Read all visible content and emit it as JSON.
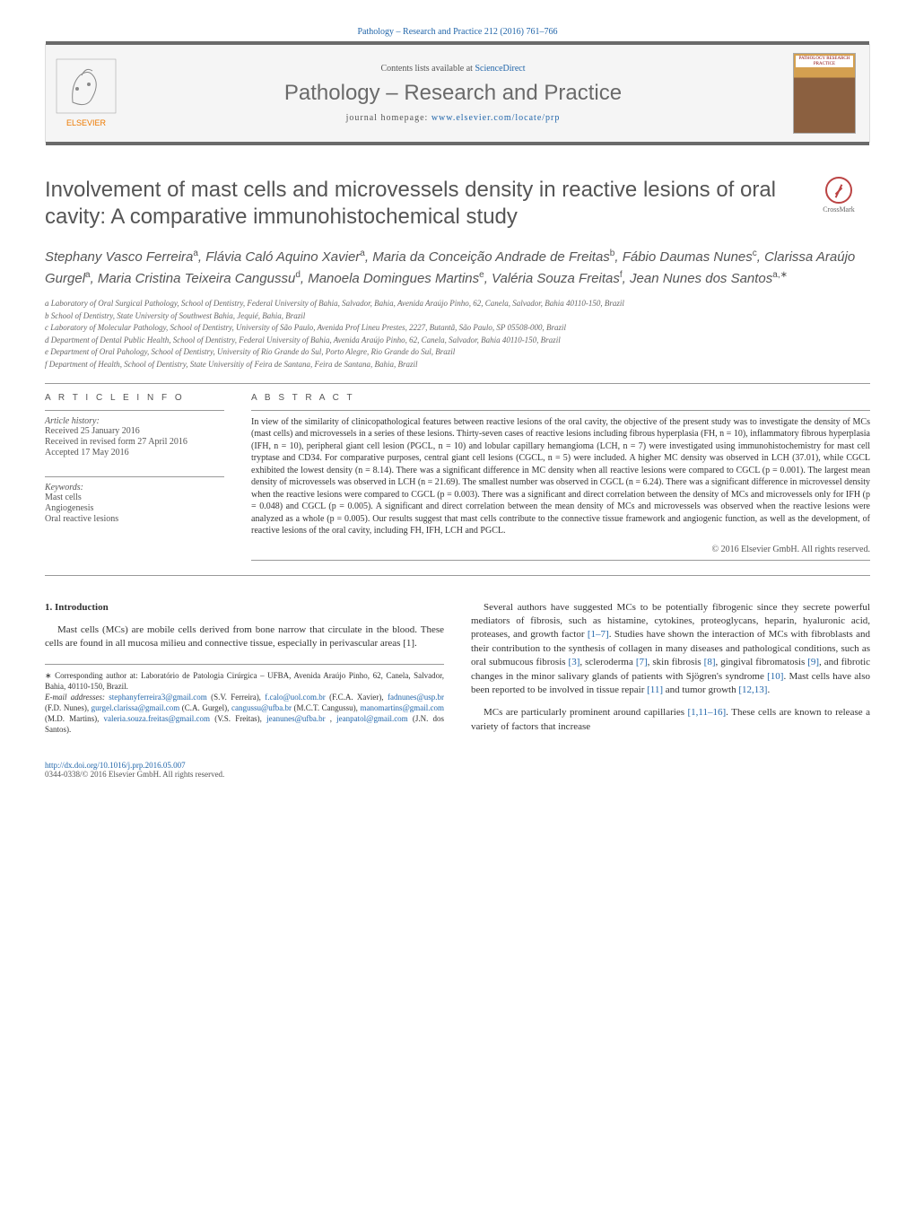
{
  "meta": {
    "citation_line": "Pathology – Research and Practice 212 (2016) 761–766",
    "contents_prefix": "Contents lists available at ",
    "contents_link": "ScienceDirect",
    "journal_name": "Pathology – Research and Practice",
    "homepage_prefix": "journal homepage: ",
    "homepage_link": "www.elsevier.com/locate/prp",
    "cover_label": "PATHOLOGY RESEARCH PRACTICE",
    "crossmark": "CrossMark"
  },
  "title": "Involvement of mast cells and microvessels density in reactive lesions of oral cavity: A comparative immunohistochemical study",
  "authors_html": "Stephany Vasco Ferreira<sup>a</sup>, Flávia Caló Aquino Xavier<sup>a</sup>, Maria da Conceição Andrade de Freitas<sup>b</sup>, Fábio Daumas Nunes<sup>c</sup>, Clarissa Araújo Gurgel<sup>a</sup>, Maria Cristina Teixeira Cangussu<sup>d</sup>, Manoela Domingues Martins<sup>e</sup>, Valéria Souza Freitas<sup>f</sup>, Jean Nunes dos Santos<sup>a,∗</sup>",
  "affiliations": [
    "a Laboratory of Oral Surgical Pathology, School of Dentistry, Federal University of Bahia, Salvador, Bahia, Avenida Araújo Pinho, 62, Canela, Salvador, Bahia 40110-150, Brazil",
    "b School of Dentistry, State University of Southwest Bahia, Jequié, Bahia, Brazil",
    "c Laboratory of Molecular Pathology, School of Dentistry, University of São Paulo, Avenida Prof Lineu Prestes, 2227, Butantã, São Paulo, SP 05508-000, Brazil",
    "d Department of Dental Public Health, School of Dentistry, Federal University of Bahia, Avenida Araújo Pinho, 62, Canela, Salvador, Bahia 40110-150, Brazil",
    "e Department of Oral Pahology, School of Dentistry, University of Rio Grande do Sul, Porto Alegre, Rio Grande do Sul, Brazil",
    "f Department of Health, School of Dentistry, State Universitiy of Feira de Santana, Feira de Santana, Bahia, Brazil"
  ],
  "info": {
    "heading": "a r t i c l e   i n f o",
    "history_label": "Article history:",
    "history": [
      "Received 25 January 2016",
      "Received in revised form 27 April 2016",
      "Accepted 17 May 2016"
    ],
    "keywords_label": "Keywords:",
    "keywords": [
      "Mast cells",
      "Angiogenesis",
      "Oral reactive lesions"
    ]
  },
  "abstract": {
    "heading": "a b s t r a c t",
    "text": "In view of the similarity of clinicopathological features between reactive lesions of the oral cavity, the objective of the present study was to investigate the density of MCs (mast cells) and microvessels in a series of these lesions. Thirty-seven cases of reactive lesions including fibrous hyperplasia (FH, n = 10), inflammatory fibrous hyperplasia (IFH, n = 10), peripheral giant cell lesion (PGCL, n = 10) and lobular capillary hemangioma (LCH, n = 7) were investigated using immunohistochemistry for mast cell tryptase and CD34. For comparative purposes, central giant cell lesions (CGCL, n = 5) were included. A higher MC density was observed in LCH (37.01), while CGCL exhibited the lowest density (n = 8.14). There was a significant difference in MC density when all reactive lesions were compared to CGCL (p = 0.001). The largest mean density of microvessels was observed in LCH (n = 21.69). The smallest number was observed in CGCL (n = 6.24). There was a significant difference in microvessel density when the reactive lesions were compared to CGCL (p = 0.003). There was a significant and direct correlation between the density of MCs and microvessels only for IFH (p = 0.048) and CGCL (p = 0.005). A significant and direct correlation between the mean density of MCs and microvessels was observed when the reactive lesions were analyzed as a whole (p = 0.005). Our results suggest that mast cells contribute to the connective tissue framework and angiogenic function, as well as the development, of reactive lesions of the oral cavity, including FH, IFH, LCH and PGCL.",
    "copyright": "© 2016 Elsevier GmbH. All rights reserved."
  },
  "body": {
    "heading": "1.  Introduction",
    "col1": {
      "p1": "Mast cells (MCs) are mobile cells derived from bone narrow that circulate in the blood. These cells are found in all mucosa milieu and connective tissue, especially in perivascular areas [1].",
      "fn_corr_label": "∗ Corresponding author at: ",
      "fn_corr_text": "Laboratório de Patologia Cirúrgica – UFBA, Avenida Araújo Pinho, 62, Canela, Salvador, Bahia, 40110-150, Brazil.",
      "fn_email_label": "E-mail addresses: ",
      "emails": [
        {
          "addr": "stephanyferreira3@gmail.com",
          "who": "(S.V. Ferreira)"
        },
        {
          "addr": "f.calo@uol.com.br",
          "who": "(F.C.A. Xavier)"
        },
        {
          "addr": "fadnunes@usp.br",
          "who": "(F.D. Nunes)"
        },
        {
          "addr": "gurgel.clarissa@gmail.com",
          "who": "(C.A. Gurgel)"
        },
        {
          "addr": "cangussu@ufba.br",
          "who": "(M.C.T. Cangussu)"
        },
        {
          "addr": "manomartins@gmail.com",
          "who": "(M.D. Martins)"
        },
        {
          "addr": "valeria.souza.freitas@gmail.com",
          "who": "(V.S. Freitas)"
        },
        {
          "addr": "jeanunes@ufba.br",
          "who": ""
        },
        {
          "addr": "jeanpatol@gmail.com",
          "who": "(J.N. dos Santos)."
        }
      ]
    },
    "col2": {
      "p1_a": "Several authors have suggested MCs to be potentially fibrogenic since they secrete powerful mediators of fibrosis, such as histamine, cytokines, proteoglycans, heparin, hyaluronic acid, proteases, and growth factor ",
      "p1_link1": "[1–7]",
      "p1_b": ". Studies have shown the interaction of MCs with fibroblasts and their contribution to the synthesis of collagen in many diseases and pathological conditions, such as oral submucous fibrosis ",
      "p1_link2": "[3]",
      "p1_c": ", scleroderma ",
      "p1_link3": "[7]",
      "p1_d": ", skin fibrosis ",
      "p1_link4": "[8]",
      "p1_e": ", gingival fibromatosis ",
      "p1_link5": "[9]",
      "p1_f": ", and fibrotic changes in the minor salivary glands of patients with Sjögren's syndrome ",
      "p1_link6": "[10]",
      "p1_g": ". Mast cells have also been reported to be involved in tissue repair ",
      "p1_link7": "[11]",
      "p1_h": " and tumor growth ",
      "p1_link8": "[12,13]",
      "p1_i": ".",
      "p2_a": "MCs are particularly prominent around capillaries ",
      "p2_link1": "[1,11–16]",
      "p2_b": ". These cells are known to release a variety of factors that increase"
    }
  },
  "footer": {
    "doi": "http://dx.doi.org/10.1016/j.prp.2016.05.007",
    "issn_line": "0344-0338/© 2016 Elsevier GmbH. All rights reserved."
  },
  "colors": {
    "link": "#2266aa",
    "text_muted": "#666666",
    "heading_gray": "#555555",
    "rule": "#999999",
    "banner_bg": "#f5f5f5",
    "banner_bar": "#6a6a6a",
    "elsevier_orange": "#ee7a00"
  }
}
